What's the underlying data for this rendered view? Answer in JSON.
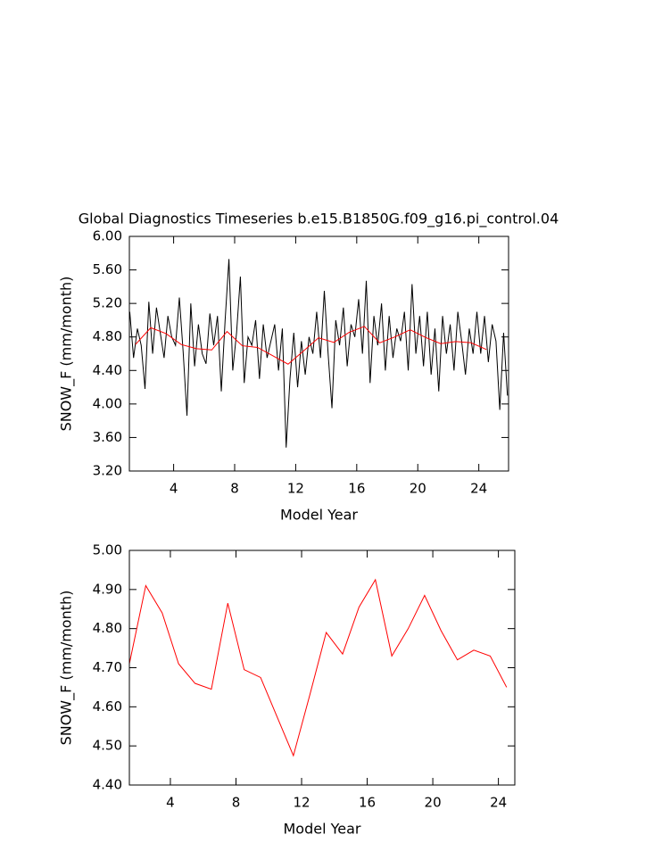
{
  "chart_data": [
    {
      "type": "line",
      "title": "Global Diagnostics Timeseries b.e15.B1850G.f09_g16.pi_control.04",
      "xlabel": "Model Year",
      "ylabel": "SNOW_F (mm/month)",
      "xlim": [
        1.1,
        25.95
      ],
      "ylim": [
        3.2,
        6.0
      ],
      "xticks": [
        4,
        8,
        12,
        16,
        20,
        24
      ],
      "yticks": [
        {
          "value": 3.2,
          "label": "3.20"
        },
        {
          "value": 3.6,
          "label": "3.60"
        },
        {
          "value": 4.0,
          "label": "4.00"
        },
        {
          "value": 4.4,
          "label": "4.40"
        },
        {
          "value": 4.8,
          "label": "4.80"
        },
        {
          "value": 5.2,
          "label": "5.20"
        },
        {
          "value": 5.6,
          "label": "5.60"
        },
        {
          "value": 6.0,
          "label": "6.00"
        }
      ],
      "series": [
        {
          "color": "#000000",
          "x": [
            1.125,
            1.375,
            1.625,
            1.875,
            2.125,
            2.375,
            2.625,
            2.875,
            3.125,
            3.375,
            3.625,
            3.875,
            4.125,
            4.375,
            4.625,
            4.875,
            5.125,
            5.375,
            5.625,
            5.875,
            6.125,
            6.375,
            6.625,
            6.875,
            7.125,
            7.375,
            7.625,
            7.875,
            8.125,
            8.375,
            8.625,
            8.875,
            9.125,
            9.375,
            9.625,
            9.875,
            10.125,
            10.375,
            10.625,
            10.875,
            11.125,
            11.375,
            11.625,
            11.875,
            12.125,
            12.375,
            12.625,
            12.875,
            13.125,
            13.375,
            13.625,
            13.875,
            14.125,
            14.375,
            14.625,
            14.875,
            15.125,
            15.375,
            15.625,
            15.875,
            16.125,
            16.375,
            16.625,
            16.875,
            17.125,
            17.375,
            17.625,
            17.875,
            18.125,
            18.375,
            18.625,
            18.875,
            19.125,
            19.375,
            19.625,
            19.875,
            20.125,
            20.375,
            20.625,
            20.875,
            21.125,
            21.375,
            21.625,
            21.875,
            22.125,
            22.375,
            22.625,
            22.875,
            23.125,
            23.375,
            23.625,
            23.875,
            24.125,
            24.375,
            24.625,
            24.875,
            25.125,
            25.375,
            25.625,
            25.875
          ],
          "values": [
            5.1,
            4.55,
            4.9,
            4.7,
            4.18,
            5.22,
            4.6,
            5.15,
            4.85,
            4.55,
            5.05,
            4.8,
            4.7,
            5.27,
            4.62,
            3.86,
            5.2,
            4.45,
            4.95,
            4.6,
            4.48,
            5.08,
            4.7,
            5.05,
            4.15,
            5.0,
            5.73,
            4.4,
            4.85,
            5.52,
            4.25,
            4.8,
            4.7,
            5.0,
            4.3,
            4.95,
            4.55,
            4.75,
            4.95,
            4.4,
            4.9,
            3.48,
            4.3,
            4.85,
            4.2,
            4.75,
            4.35,
            4.8,
            4.6,
            5.1,
            4.55,
            5.35,
            4.6,
            3.95,
            5.0,
            4.7,
            5.15,
            4.45,
            4.95,
            4.8,
            5.25,
            4.6,
            5.47,
            4.25,
            5.05,
            4.7,
            5.2,
            4.4,
            5.05,
            4.55,
            4.9,
            4.75,
            5.1,
            4.4,
            5.43,
            4.6,
            5.05,
            4.45,
            5.1,
            4.35,
            4.9,
            4.15,
            5.05,
            4.6,
            4.95,
            4.4,
            5.1,
            4.75,
            4.35,
            4.9,
            4.6,
            5.1,
            4.6,
            5.05,
            4.5,
            4.95,
            4.75,
            3.93,
            4.85,
            4.1
          ]
        },
        {
          "color": "#ff0000",
          "x": [
            1.5,
            2.5,
            3.5,
            4.5,
            5.5,
            6.5,
            7.5,
            8.5,
            9.5,
            10.5,
            11.5,
            12.5,
            13.5,
            14.5,
            15.5,
            16.5,
            17.5,
            18.5,
            19.5,
            20.5,
            21.5,
            22.5,
            23.5,
            24.5
          ],
          "values": [
            4.71,
            4.91,
            4.84,
            4.71,
            4.66,
            4.645,
            4.865,
            4.695,
            4.675,
            4.575,
            4.475,
            4.63,
            4.79,
            4.735,
            4.855,
            4.925,
            4.73,
            4.8,
            4.885,
            4.795,
            4.72,
            4.745,
            4.73,
            4.65
          ]
        }
      ]
    },
    {
      "type": "line",
      "xlabel": "Model Year",
      "ylabel": "SNOW_F (mm/month)",
      "xlim": [
        1.5,
        25.0
      ],
      "ylim": [
        4.4,
        5.0
      ],
      "xticks": [
        4,
        8,
        12,
        16,
        20,
        24
      ],
      "yticks": [
        {
          "value": 4.4,
          "label": "4.40"
        },
        {
          "value": 4.5,
          "label": "4.50"
        },
        {
          "value": 4.6,
          "label": "4.60"
        },
        {
          "value": 4.7,
          "label": "4.70"
        },
        {
          "value": 4.8,
          "label": "4.80"
        },
        {
          "value": 4.9,
          "label": "4.90"
        },
        {
          "value": 5.0,
          "label": "5.00"
        }
      ],
      "series": [
        {
          "color": "#ff0000",
          "x": [
            1.5,
            2.5,
            3.5,
            4.5,
            5.5,
            6.5,
            7.5,
            8.5,
            9.5,
            10.5,
            11.5,
            12.5,
            13.5,
            14.5,
            15.5,
            16.5,
            17.5,
            18.5,
            19.5,
            20.5,
            21.5,
            22.5,
            23.5,
            24.5
          ],
          "values": [
            4.71,
            4.91,
            4.84,
            4.71,
            4.66,
            4.645,
            4.865,
            4.695,
            4.675,
            4.575,
            4.475,
            4.63,
            4.79,
            4.735,
            4.855,
            4.925,
            4.73,
            4.8,
            4.885,
            4.795,
            4.72,
            4.745,
            4.73,
            4.65
          ]
        }
      ]
    }
  ]
}
